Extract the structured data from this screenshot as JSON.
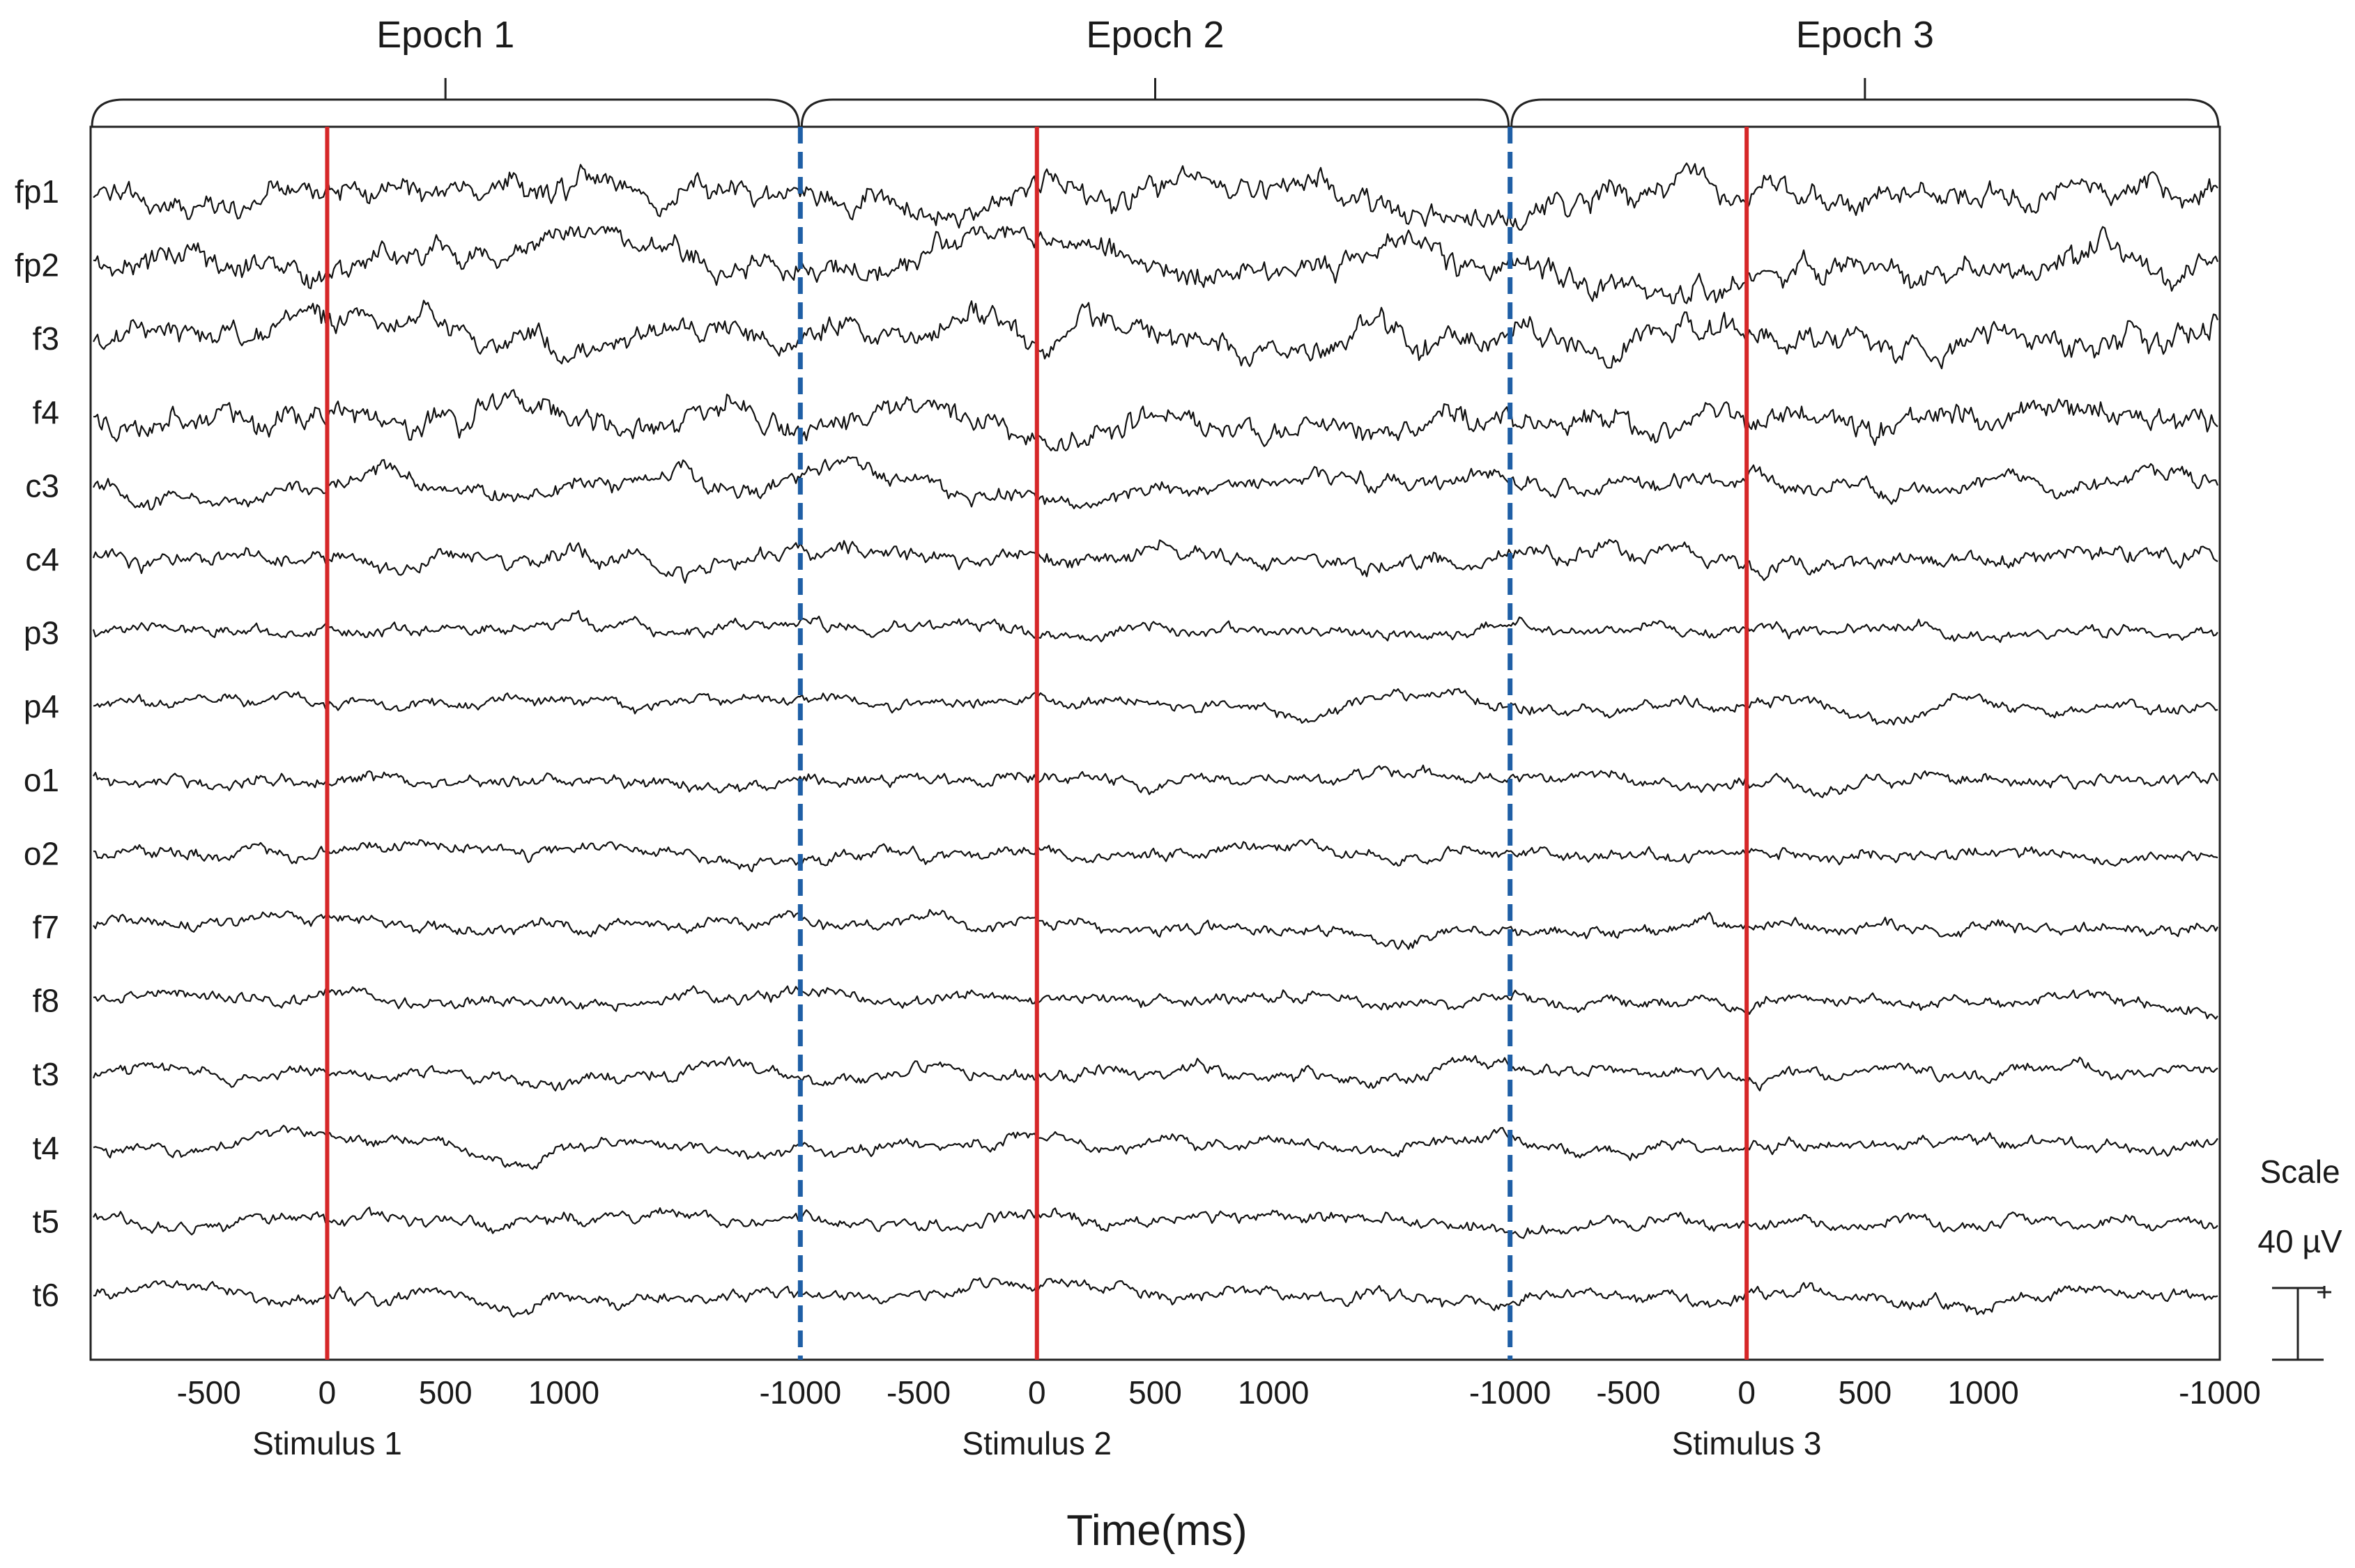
{
  "chart_data": {
    "type": "line",
    "xlabel": "Time(ms)",
    "epochs": [
      {
        "label": "Epoch 1",
        "stimulus": "Stimulus 1"
      },
      {
        "label": "Epoch 2",
        "stimulus": "Stimulus 2"
      },
      {
        "label": "Epoch 3",
        "stimulus": "Stimulus 3"
      }
    ],
    "epoch_x_range_ms": [
      -1000,
      2000
    ],
    "ticks": [
      {
        "label": "-500",
        "ms": -500
      },
      {
        "label": "0",
        "ms": 0
      },
      {
        "label": "500",
        "ms": 500
      },
      {
        "label": "1000",
        "ms": 1000
      },
      {
        "label": "-1000",
        "ms": 2000
      }
    ],
    "channels": [
      "fp1",
      "fp2",
      "f3",
      "f4",
      "c3",
      "c4",
      "p3",
      "p4",
      "o1",
      "o2",
      "f7",
      "f8",
      "t3",
      "t4",
      "t5",
      "t6"
    ],
    "stimulus_marker_ms": 0,
    "scale": {
      "title": "Scale",
      "value": "40 µV",
      "microvolts": 40
    },
    "colors": {
      "trace": "#111111",
      "stimulus_line": "#d62728",
      "epoch_boundary": "#1f5fa6",
      "frame": "#222222"
    }
  }
}
